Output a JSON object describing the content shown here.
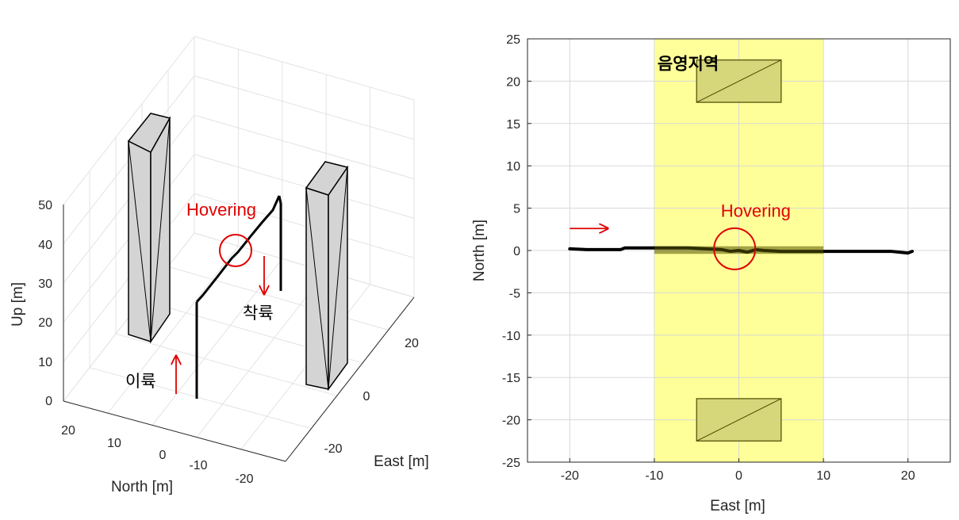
{
  "colors": {
    "trajectory": "#000000",
    "annotation": "#e00000",
    "shadow_zone": "#ffff99",
    "building_face": "#d4d4d4",
    "building_2d_fill": "#d6d67a",
    "grid": "#e3e3e3",
    "axis": "#262626"
  },
  "chart_data": [
    {
      "type": "line3d",
      "view": "3d-perspective",
      "xlabel": "East [m]",
      "ylabel": "North [m]",
      "zlabel": "Up [m]",
      "xlim": [
        -30,
        30
      ],
      "ylim": [
        -25,
        25
      ],
      "zlim": [
        0,
        50
      ],
      "xticks": [
        "-20",
        "0",
        "20"
      ],
      "yticks": [
        "20",
        "10",
        "0",
        "-10",
        "-20"
      ],
      "zticks": [
        "50",
        "40",
        "30",
        "20",
        "10",
        "0"
      ],
      "grid": true,
      "trajectory": {
        "segments": [
          {
            "name": "takeoff",
            "from": [
              -20,
              0,
              0
            ],
            "to": [
              -20,
              0,
              25
            ]
          },
          {
            "name": "cruise",
            "from": [
              -20,
              0,
              25
            ],
            "to": [
              20,
              0,
              50
            ]
          },
          {
            "name": "landing",
            "from": [
              20,
              0,
              50
            ],
            "to": [
              20,
              0,
              28
            ]
          }
        ]
      },
      "buildings": [
        {
          "east": [
            -5,
            5
          ],
          "north": [
            17.5,
            22.5
          ],
          "height": 50
        },
        {
          "east": [
            -5,
            5
          ],
          "north": [
            -22.5,
            -17.5
          ],
          "height": 50
        }
      ],
      "annotations": {
        "takeoff": "이륙",
        "landing": "착륙",
        "hovering": "Hovering"
      }
    },
    {
      "type": "line",
      "title": "",
      "xlabel": "East [m]",
      "ylabel": "North [m]",
      "xlim": [
        -25,
        25
      ],
      "ylim": [
        -25,
        25
      ],
      "xticks": [
        -20,
        -10,
        0,
        10,
        20
      ],
      "yticks": [
        25,
        20,
        15,
        10,
        5,
        0,
        -5,
        -10,
        -15,
        -20,
        -25
      ],
      "grid": true,
      "shadow_region": {
        "x": [
          -10,
          10
        ],
        "label": "음영지역"
      },
      "buildings": [
        {
          "x": [
            -5,
            5
          ],
          "y": [
            17.5,
            22.5
          ]
        },
        {
          "x": [
            -5,
            5
          ],
          "y": [
            -22.5,
            -17.5
          ]
        }
      ],
      "series": [
        {
          "x": [
            -20,
            -18,
            -16,
            -14,
            -13.5,
            -12,
            -10,
            -8,
            -6,
            -4,
            -2,
            -1,
            0,
            1,
            2,
            3,
            5,
            8,
            10,
            12,
            14,
            16,
            18,
            19,
            20,
            20.5
          ],
          "y": [
            0.2,
            0.1,
            0.1,
            0.1,
            0.3,
            0.3,
            0.3,
            0.3,
            0.3,
            0.2,
            0.1,
            -0.1,
            0.0,
            -0.2,
            0.1,
            0.0,
            -0.1,
            -0.1,
            -0.1,
            -0.1,
            -0.1,
            -0.1,
            -0.1,
            -0.2,
            -0.3,
            -0.1
          ]
        }
      ],
      "annotations": {
        "hovering": "Hovering",
        "direction_arrow_start": [
          -20,
          2.6
        ],
        "direction_arrow_end": [
          -15.5,
          2.6
        ],
        "hover_center": [
          -0.5,
          0.2
        ]
      }
    }
  ]
}
